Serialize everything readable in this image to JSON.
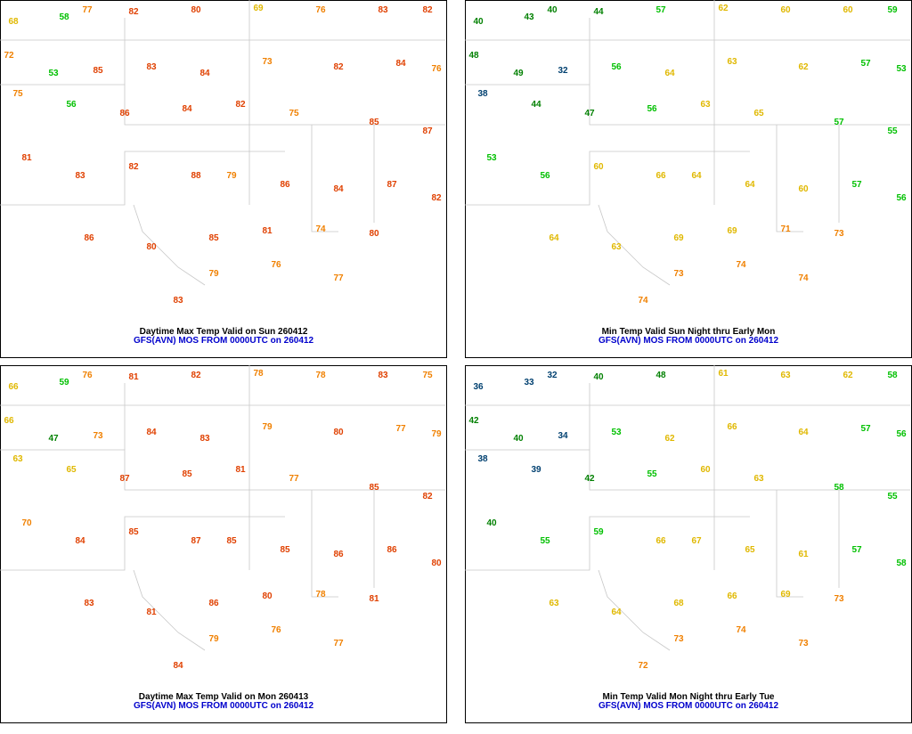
{
  "panels": [
    {
      "title": "Daytime Max Temp Valid on Sun 260412",
      "subtitle": "GFS(AVN) MOS FROM 0000UTC on 260412",
      "values": [
        68,
        58,
        77,
        82,
        80,
        69,
        76,
        83,
        82,
        72,
        53,
        85,
        83,
        84,
        73,
        82,
        84,
        76,
        75,
        56,
        86,
        84,
        82,
        75,
        85,
        87,
        81,
        83,
        82,
        88,
        79,
        86,
        84,
        87,
        82,
        86,
        80,
        85,
        81,
        74,
        80,
        83,
        79,
        76,
        77
      ]
    },
    {
      "title": "Min Temp Valid Sun Night thru Early Mon",
      "subtitle": "GFS(AVN) MOS FROM 0000UTC on 260412",
      "values": [
        40,
        43,
        40,
        44,
        57,
        62,
        60,
        60,
        59,
        48,
        49,
        32,
        56,
        64,
        63,
        62,
        57,
        53,
        38,
        44,
        47,
        56,
        63,
        65,
        57,
        55,
        53,
        56,
        60,
        66,
        64,
        64,
        60,
        57,
        56,
        64,
        63,
        69,
        69,
        71,
        73,
        74,
        73,
        74,
        74
      ]
    },
    {
      "title": "Daytime Max Temp Valid on Mon 260413",
      "subtitle": "GFS(AVN) MOS FROM 0000UTC on 260412",
      "values": [
        66,
        59,
        76,
        81,
        82,
        78,
        78,
        83,
        75,
        66,
        47,
        73,
        84,
        83,
        79,
        80,
        77,
        79,
        63,
        65,
        87,
        85,
        81,
        77,
        85,
        82,
        70,
        84,
        85,
        87,
        85,
        85,
        86,
        86,
        80,
        83,
        81,
        86,
        80,
        78,
        81,
        84,
        79,
        76,
        77
      ]
    },
    {
      "title": "Min Temp Valid Mon Night thru Early Tue",
      "subtitle": "GFS(AVN) MOS FROM 0000UTC on 260412",
      "values": [
        36,
        33,
        32,
        40,
        48,
        61,
        63,
        62,
        58,
        42,
        40,
        34,
        53,
        62,
        66,
        64,
        57,
        56,
        38,
        39,
        42,
        55,
        60,
        63,
        58,
        55,
        40,
        55,
        59,
        66,
        67,
        65,
        61,
        57,
        58,
        63,
        64,
        68,
        66,
        69,
        73,
        72,
        73,
        74,
        73
      ]
    }
  ]
}
